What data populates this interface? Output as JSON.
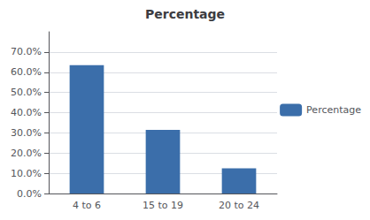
{
  "chart_data": {
    "type": "bar",
    "title": "Percentage",
    "categories": [
      "4 to 6",
      "15 to 19",
      "20 to 24"
    ],
    "series": [
      {
        "name": "Percentage",
        "color": "#3B6EAA",
        "values": [
          0.635,
          0.315,
          0.125
        ]
      }
    ],
    "ylim": [
      0,
      0.8
    ],
    "yticks": [
      {
        "value": 0.0,
        "label": "0.0%"
      },
      {
        "value": 0.1,
        "label": "10.0%"
      },
      {
        "value": 0.2,
        "label": "20.0%"
      },
      {
        "value": 0.3,
        "label": "30.0%"
      },
      {
        "value": 0.4,
        "label": "40.0%"
      },
      {
        "value": 0.5,
        "label": "50.0%"
      },
      {
        "value": 0.6,
        "label": "60.0%"
      },
      {
        "value": 0.7,
        "label": "70.0%"
      }
    ],
    "grid": true,
    "legend": "right"
  }
}
